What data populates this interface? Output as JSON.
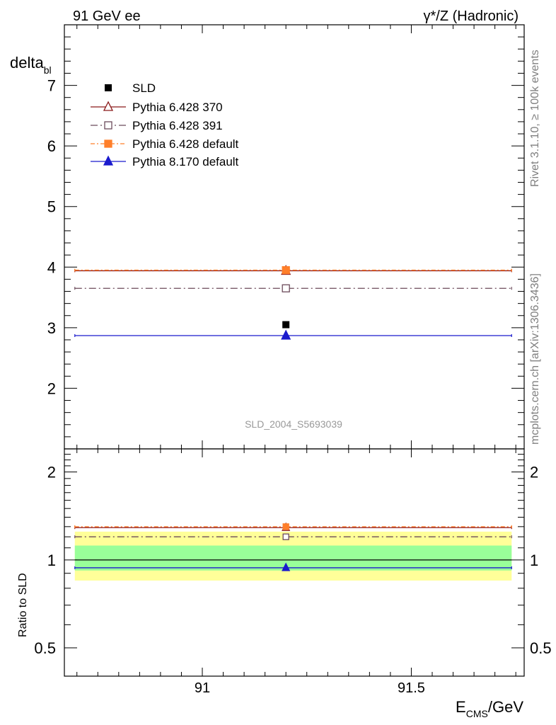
{
  "header": {
    "left": "91 GeV ee",
    "right": "γ*/Z (Hadronic)"
  },
  "side_labels": {
    "rivet": "Rivet 3.1.10, ≥ 100k events",
    "mcplots": "mcplots.cern.ch [arXiv:1306.3436]"
  },
  "watermark": "SLD_2004_S5693039",
  "colors": {
    "sld": "#000000",
    "p370": "#8b1a1a",
    "p391": "#6b4a5a",
    "p6def": "#ff7f2a",
    "p8def": "#1a1acd",
    "band_yellow": "#ffff99",
    "band_green": "#99ff99"
  },
  "chart_data": [
    {
      "type": "line",
      "panel": "main",
      "ylabel": "delta",
      "ylabel_sub": "bl",
      "xlim": [
        90.67,
        91.77
      ],
      "ylim": [
        1.0,
        8.0
      ],
      "yticks": [
        2,
        3,
        4,
        5,
        6,
        7
      ],
      "ytick_labels": [
        "2",
        "3",
        "4",
        "5",
        "6",
        "7"
      ],
      "x_range": [
        90.695,
        91.74
      ],
      "x_point": 91.2,
      "legend_placement": "top-left",
      "series": [
        {
          "name": "SLD",
          "style": "data",
          "x": [
            91.2
          ],
          "y": [
            3.05
          ]
        },
        {
          "name": "Pythia 6.428 370",
          "style": "open-triangle-solid",
          "x": [
            91.2
          ],
          "y": [
            3.94
          ]
        },
        {
          "name": "Pythia 6.428 391",
          "style": "open-square-dashdot",
          "x": [
            91.2
          ],
          "y": [
            3.65
          ]
        },
        {
          "name": "Pythia 6.428 default",
          "style": "filled-square-dashdot",
          "x": [
            91.2
          ],
          "y": [
            3.95
          ]
        },
        {
          "name": "Pythia 8.170 default",
          "style": "filled-triangle-solid",
          "x": [
            91.2
          ],
          "y": [
            2.87
          ]
        }
      ]
    },
    {
      "type": "line",
      "panel": "ratio",
      "ylabel": "Ratio to SLD",
      "xlabel": "E",
      "xlabel_sub": "CMS",
      "xlabel_unit": "/GeV",
      "xlim": [
        90.67,
        91.77
      ],
      "ylim": [
        0.4,
        2.4
      ],
      "yscale": "log",
      "yticks": [
        0.5,
        1,
        2
      ],
      "ytick_labels": [
        "0.5",
        "1",
        "2"
      ],
      "xticks": [
        91,
        91.5
      ],
      "xtick_labels": [
        "91",
        "91.5"
      ],
      "bands": {
        "yellow": [
          0.85,
          1.25
        ],
        "green": [
          0.92,
          1.12
        ]
      },
      "series": [
        {
          "name": "Pythia 6.428 370",
          "x": [
            91.2
          ],
          "y": [
            1.29
          ]
        },
        {
          "name": "Pythia 6.428 391",
          "x": [
            91.2
          ],
          "y": [
            1.2
          ]
        },
        {
          "name": "Pythia 6.428 default",
          "x": [
            91.2
          ],
          "y": [
            1.3
          ]
        },
        {
          "name": "Pythia 8.170 default",
          "x": [
            91.2
          ],
          "y": [
            0.94
          ]
        }
      ]
    }
  ]
}
